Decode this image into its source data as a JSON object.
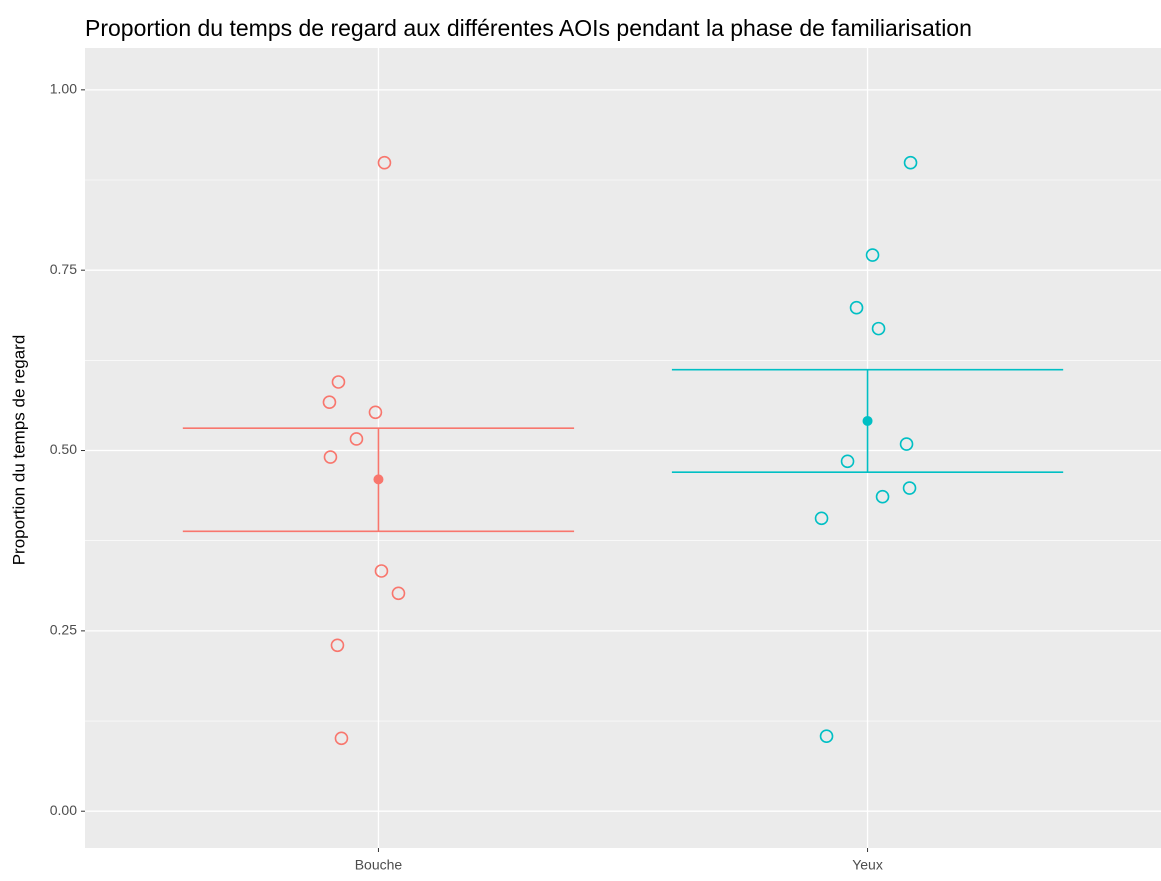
{
  "chart_data": {
    "type": "strip",
    "title": "Proportion du temps de regard aux différentes AOIs pendant la phase de familiarisation",
    "y_label": "Proportion du temps de regard",
    "categories": [
      "Bouche",
      "Yeux"
    ],
    "groups": [
      {
        "color": "#F8766D",
        "values": [
          0.899,
          0.595,
          0.567,
          0.553,
          0.516,
          0.491,
          0.333,
          0.302,
          0.23,
          0.101
        ],
        "mean": 0.46,
        "lower": 0.388,
        "upper": 0.531
      },
      {
        "color": "#00BFC4",
        "values": [
          0.899,
          0.771,
          0.698,
          0.669,
          0.509,
          0.485,
          0.448,
          0.436,
          0.406,
          0.104
        ],
        "mean": 0.541,
        "lower": 0.47,
        "upper": 0.612
      }
    ],
    "ylim": [
      -0.051,
      1.058
    ],
    "yticks": [
      {
        "value": 0,
        "label": "0.00"
      },
      {
        "value": 0.25,
        "label": "0.25"
      },
      {
        "value": 0.5,
        "label": "0.50"
      },
      {
        "value": 0.75,
        "label": "0.75"
      },
      {
        "value": 1,
        "label": "1.00"
      }
    ],
    "grid": true
  }
}
